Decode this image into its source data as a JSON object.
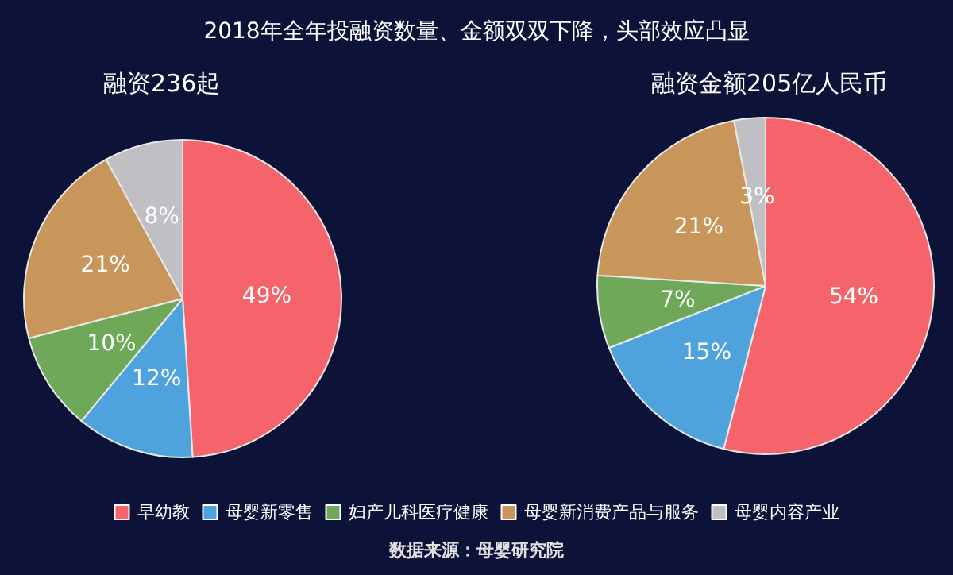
{
  "chart_data": [
    {
      "type": "pie",
      "title": "融资236起",
      "categories": [
        "早幼教",
        "母婴新零售",
        "妇产儿科医疗健康",
        "母婴新消费产品与服务",
        "母婴内容产业"
      ],
      "values": [
        49,
        12,
        10,
        21,
        8
      ],
      "value_labels": [
        "49%",
        "12%",
        "10%",
        "21%",
        "8%"
      ],
      "colors": [
        "#f4646a",
        "#4ea3dc",
        "#70a85a",
        "#c8955a",
        "#c0c0c4"
      ],
      "legend": "bottom",
      "annotations": [
        "2018年全年投融资数量、金额双双下降，头部效应凸显",
        "数据来源：母婴研究院"
      ]
    },
    {
      "type": "pie",
      "title": "融资金额205亿人民币",
      "categories": [
        null,
        null,
        null,
        null,
        null
      ],
      "values": [
        54,
        15,
        7,
        21,
        3
      ],
      "value_labels": [
        "54%",
        "15%",
        "7%",
        "21%",
        "3%"
      ],
      "colors": [
        "#f4646a",
        "#4ea3dc",
        "#70a85a",
        "#c8955a",
        "#c0c0c4"
      ]
    }
  ]
}
